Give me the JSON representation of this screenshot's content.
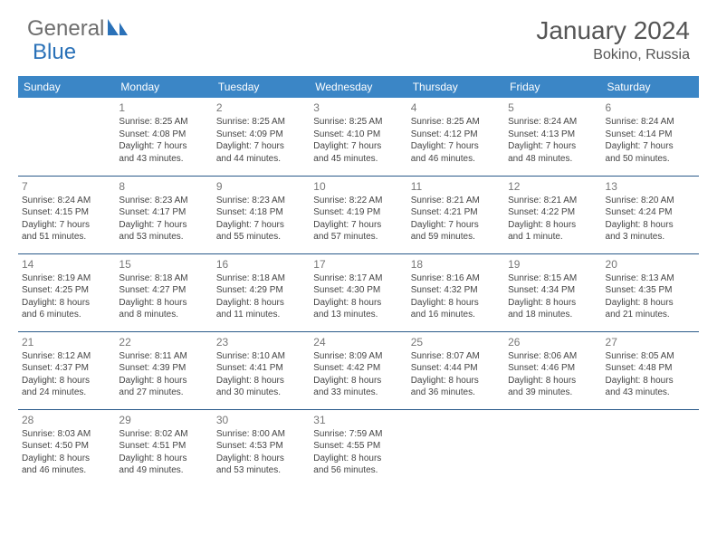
{
  "logo": {
    "text1": "General",
    "text2": "Blue"
  },
  "title": "January 2024",
  "location": "Bokino, Russia",
  "weekdays": [
    "Sunday",
    "Monday",
    "Tuesday",
    "Wednesday",
    "Thursday",
    "Friday",
    "Saturday"
  ],
  "colors": {
    "header_bg": "#3b86c6",
    "row_border": "#2a5a8a",
    "logo_gray": "#6e6e6e",
    "logo_blue": "#2a71b8",
    "text": "#444444"
  },
  "weeks": [
    [
      {
        "n": "",
        "sr": "",
        "ss": "",
        "d1": "",
        "d2": ""
      },
      {
        "n": "1",
        "sr": "Sunrise: 8:25 AM",
        "ss": "Sunset: 4:08 PM",
        "d1": "Daylight: 7 hours",
        "d2": "and 43 minutes."
      },
      {
        "n": "2",
        "sr": "Sunrise: 8:25 AM",
        "ss": "Sunset: 4:09 PM",
        "d1": "Daylight: 7 hours",
        "d2": "and 44 minutes."
      },
      {
        "n": "3",
        "sr": "Sunrise: 8:25 AM",
        "ss": "Sunset: 4:10 PM",
        "d1": "Daylight: 7 hours",
        "d2": "and 45 minutes."
      },
      {
        "n": "4",
        "sr": "Sunrise: 8:25 AM",
        "ss": "Sunset: 4:12 PM",
        "d1": "Daylight: 7 hours",
        "d2": "and 46 minutes."
      },
      {
        "n": "5",
        "sr": "Sunrise: 8:24 AM",
        "ss": "Sunset: 4:13 PM",
        "d1": "Daylight: 7 hours",
        "d2": "and 48 minutes."
      },
      {
        "n": "6",
        "sr": "Sunrise: 8:24 AM",
        "ss": "Sunset: 4:14 PM",
        "d1": "Daylight: 7 hours",
        "d2": "and 50 minutes."
      }
    ],
    [
      {
        "n": "7",
        "sr": "Sunrise: 8:24 AM",
        "ss": "Sunset: 4:15 PM",
        "d1": "Daylight: 7 hours",
        "d2": "and 51 minutes."
      },
      {
        "n": "8",
        "sr": "Sunrise: 8:23 AM",
        "ss": "Sunset: 4:17 PM",
        "d1": "Daylight: 7 hours",
        "d2": "and 53 minutes."
      },
      {
        "n": "9",
        "sr": "Sunrise: 8:23 AM",
        "ss": "Sunset: 4:18 PM",
        "d1": "Daylight: 7 hours",
        "d2": "and 55 minutes."
      },
      {
        "n": "10",
        "sr": "Sunrise: 8:22 AM",
        "ss": "Sunset: 4:19 PM",
        "d1": "Daylight: 7 hours",
        "d2": "and 57 minutes."
      },
      {
        "n": "11",
        "sr": "Sunrise: 8:21 AM",
        "ss": "Sunset: 4:21 PM",
        "d1": "Daylight: 7 hours",
        "d2": "and 59 minutes."
      },
      {
        "n": "12",
        "sr": "Sunrise: 8:21 AM",
        "ss": "Sunset: 4:22 PM",
        "d1": "Daylight: 8 hours",
        "d2": "and 1 minute."
      },
      {
        "n": "13",
        "sr": "Sunrise: 8:20 AM",
        "ss": "Sunset: 4:24 PM",
        "d1": "Daylight: 8 hours",
        "d2": "and 3 minutes."
      }
    ],
    [
      {
        "n": "14",
        "sr": "Sunrise: 8:19 AM",
        "ss": "Sunset: 4:25 PM",
        "d1": "Daylight: 8 hours",
        "d2": "and 6 minutes."
      },
      {
        "n": "15",
        "sr": "Sunrise: 8:18 AM",
        "ss": "Sunset: 4:27 PM",
        "d1": "Daylight: 8 hours",
        "d2": "and 8 minutes."
      },
      {
        "n": "16",
        "sr": "Sunrise: 8:18 AM",
        "ss": "Sunset: 4:29 PM",
        "d1": "Daylight: 8 hours",
        "d2": "and 11 minutes."
      },
      {
        "n": "17",
        "sr": "Sunrise: 8:17 AM",
        "ss": "Sunset: 4:30 PM",
        "d1": "Daylight: 8 hours",
        "d2": "and 13 minutes."
      },
      {
        "n": "18",
        "sr": "Sunrise: 8:16 AM",
        "ss": "Sunset: 4:32 PM",
        "d1": "Daylight: 8 hours",
        "d2": "and 16 minutes."
      },
      {
        "n": "19",
        "sr": "Sunrise: 8:15 AM",
        "ss": "Sunset: 4:34 PM",
        "d1": "Daylight: 8 hours",
        "d2": "and 18 minutes."
      },
      {
        "n": "20",
        "sr": "Sunrise: 8:13 AM",
        "ss": "Sunset: 4:35 PM",
        "d1": "Daylight: 8 hours",
        "d2": "and 21 minutes."
      }
    ],
    [
      {
        "n": "21",
        "sr": "Sunrise: 8:12 AM",
        "ss": "Sunset: 4:37 PM",
        "d1": "Daylight: 8 hours",
        "d2": "and 24 minutes."
      },
      {
        "n": "22",
        "sr": "Sunrise: 8:11 AM",
        "ss": "Sunset: 4:39 PM",
        "d1": "Daylight: 8 hours",
        "d2": "and 27 minutes."
      },
      {
        "n": "23",
        "sr": "Sunrise: 8:10 AM",
        "ss": "Sunset: 4:41 PM",
        "d1": "Daylight: 8 hours",
        "d2": "and 30 minutes."
      },
      {
        "n": "24",
        "sr": "Sunrise: 8:09 AM",
        "ss": "Sunset: 4:42 PM",
        "d1": "Daylight: 8 hours",
        "d2": "and 33 minutes."
      },
      {
        "n": "25",
        "sr": "Sunrise: 8:07 AM",
        "ss": "Sunset: 4:44 PM",
        "d1": "Daylight: 8 hours",
        "d2": "and 36 minutes."
      },
      {
        "n": "26",
        "sr": "Sunrise: 8:06 AM",
        "ss": "Sunset: 4:46 PM",
        "d1": "Daylight: 8 hours",
        "d2": "and 39 minutes."
      },
      {
        "n": "27",
        "sr": "Sunrise: 8:05 AM",
        "ss": "Sunset: 4:48 PM",
        "d1": "Daylight: 8 hours",
        "d2": "and 43 minutes."
      }
    ],
    [
      {
        "n": "28",
        "sr": "Sunrise: 8:03 AM",
        "ss": "Sunset: 4:50 PM",
        "d1": "Daylight: 8 hours",
        "d2": "and 46 minutes."
      },
      {
        "n": "29",
        "sr": "Sunrise: 8:02 AM",
        "ss": "Sunset: 4:51 PM",
        "d1": "Daylight: 8 hours",
        "d2": "and 49 minutes."
      },
      {
        "n": "30",
        "sr": "Sunrise: 8:00 AM",
        "ss": "Sunset: 4:53 PM",
        "d1": "Daylight: 8 hours",
        "d2": "and 53 minutes."
      },
      {
        "n": "31",
        "sr": "Sunrise: 7:59 AM",
        "ss": "Sunset: 4:55 PM",
        "d1": "Daylight: 8 hours",
        "d2": "and 56 minutes."
      },
      {
        "n": "",
        "sr": "",
        "ss": "",
        "d1": "",
        "d2": ""
      },
      {
        "n": "",
        "sr": "",
        "ss": "",
        "d1": "",
        "d2": ""
      },
      {
        "n": "",
        "sr": "",
        "ss": "",
        "d1": "",
        "d2": ""
      }
    ]
  ]
}
